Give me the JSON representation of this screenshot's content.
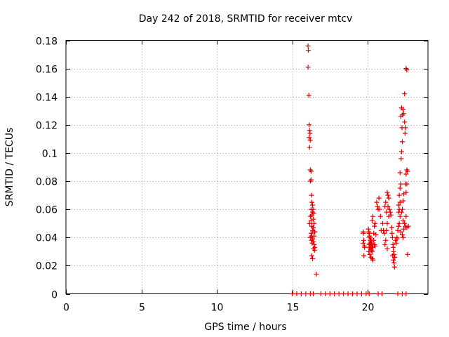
{
  "chart_data": {
    "type": "scatter",
    "title": "Day 242 of 2018, SRMTID for receiver mtcv",
    "xlabel": "GPS time / hours",
    "ylabel": "SRMTID / TECUs",
    "xlim": [
      0,
      24
    ],
    "ylim": [
      0,
      0.18
    ],
    "grid": true,
    "marker": "+",
    "marker_color": "#e00000",
    "x_ticks": [
      {
        "value": 0,
        "label": "0"
      },
      {
        "value": 5,
        "label": "5"
      },
      {
        "value": 10,
        "label": "10"
      },
      {
        "value": 15,
        "label": "15"
      },
      {
        "value": 20,
        "label": "20"
      }
    ],
    "y_ticks": [
      {
        "value": 0,
        "label": "0"
      },
      {
        "value": 0.02,
        "label": "0.02"
      },
      {
        "value": 0.04,
        "label": "0.04"
      },
      {
        "value": 0.06,
        "label": "0.06"
      },
      {
        "value": 0.08,
        "label": "0.08"
      },
      {
        "value": 0.1,
        "label": "0.1"
      },
      {
        "value": 0.12,
        "label": "0.12"
      },
      {
        "value": 0.14,
        "label": "0.14"
      },
      {
        "value": 0.16,
        "label": "0.16"
      },
      {
        "value": 0.18,
        "label": "0.18"
      }
    ],
    "series": [
      {
        "name": "SRMTID",
        "points": [
          [
            16.05,
            0.176
          ],
          [
            16.07,
            0.173
          ],
          [
            16.05,
            0.161
          ],
          [
            16.1,
            0.141
          ],
          [
            16.12,
            0.12
          ],
          [
            16.15,
            0.116
          ],
          [
            16.18,
            0.114
          ],
          [
            16.12,
            0.111
          ],
          [
            16.2,
            0.109
          ],
          [
            16.15,
            0.104
          ],
          [
            16.2,
            0.088
          ],
          [
            16.25,
            0.087
          ],
          [
            16.25,
            0.081
          ],
          [
            16.2,
            0.08
          ],
          [
            16.28,
            0.07
          ],
          [
            16.3,
            0.065
          ],
          [
            16.35,
            0.063
          ],
          [
            16.25,
            0.06
          ],
          [
            16.35,
            0.058
          ],
          [
            16.3,
            0.056
          ],
          [
            16.2,
            0.055
          ],
          [
            16.4,
            0.053
          ],
          [
            16.25,
            0.052
          ],
          [
            16.15,
            0.05
          ],
          [
            16.45,
            0.05
          ],
          [
            16.3,
            0.048
          ],
          [
            16.4,
            0.047
          ],
          [
            16.35,
            0.045
          ],
          [
            16.5,
            0.044
          ],
          [
            16.25,
            0.043
          ],
          [
            16.3,
            0.041
          ],
          [
            16.45,
            0.041
          ],
          [
            16.2,
            0.04
          ],
          [
            16.35,
            0.039
          ],
          [
            16.28,
            0.038
          ],
          [
            16.4,
            0.037
          ],
          [
            16.32,
            0.036
          ],
          [
            16.45,
            0.035
          ],
          [
            16.5,
            0.033
          ],
          [
            16.4,
            0.032
          ],
          [
            16.48,
            0.031
          ],
          [
            16.3,
            0.027
          ],
          [
            16.35,
            0.025
          ],
          [
            16.6,
            0.014
          ],
          [
            16.38,
            0.06
          ],
          [
            16.42,
            0.057
          ],
          [
            16.46,
            0.044
          ],
          [
            19.7,
            0.044
          ],
          [
            19.72,
            0.043
          ],
          [
            19.75,
            0.038
          ],
          [
            19.7,
            0.036
          ],
          [
            19.78,
            0.034
          ],
          [
            19.8,
            0.033
          ],
          [
            19.75,
            0.027
          ],
          [
            20.05,
            0.046
          ],
          [
            20.08,
            0.044
          ],
          [
            20.1,
            0.043
          ],
          [
            20.12,
            0.041
          ],
          [
            20.15,
            0.04
          ],
          [
            20.18,
            0.039
          ],
          [
            20.2,
            0.038
          ],
          [
            20.22,
            0.037
          ],
          [
            20.15,
            0.036
          ],
          [
            20.25,
            0.036
          ],
          [
            20.1,
            0.035
          ],
          [
            20.28,
            0.035
          ],
          [
            20.2,
            0.034
          ],
          [
            20.3,
            0.033
          ],
          [
            20.12,
            0.033
          ],
          [
            20.35,
            0.033
          ],
          [
            20.18,
            0.032
          ],
          [
            20.25,
            0.031
          ],
          [
            20.08,
            0.03
          ],
          [
            20.3,
            0.03
          ],
          [
            20.15,
            0.028
          ],
          [
            20.22,
            0.026
          ],
          [
            20.3,
            0.025
          ],
          [
            20.35,
            0.024
          ],
          [
            20.4,
            0.043
          ],
          [
            20.4,
            0.038
          ],
          [
            20.45,
            0.035
          ],
          [
            20.5,
            0.034
          ],
          [
            20.3,
            0.052
          ],
          [
            20.35,
            0.055
          ],
          [
            20.45,
            0.048
          ],
          [
            20.5,
            0.05
          ],
          [
            20.55,
            0.042
          ],
          [
            20.6,
            0.065
          ],
          [
            20.65,
            0.062
          ],
          [
            20.7,
            0.06
          ],
          [
            20.75,
            0.068
          ],
          [
            20.8,
            0.06
          ],
          [
            20.85,
            0.055
          ],
          [
            20.9,
            0.045
          ],
          [
            21,
            0.05
          ],
          [
            21.05,
            0.045
          ],
          [
            21.1,
            0.043
          ],
          [
            21.15,
            0.062
          ],
          [
            21.2,
            0.065
          ],
          [
            21.25,
            0.058
          ],
          [
            21.3,
            0.072
          ],
          [
            21.35,
            0.07
          ],
          [
            21.4,
            0.068
          ],
          [
            21.35,
            0.062
          ],
          [
            21.45,
            0.06
          ],
          [
            21.5,
            0.058
          ],
          [
            21.55,
            0.056
          ],
          [
            21.4,
            0.055
          ],
          [
            21.3,
            0.05
          ],
          [
            21.25,
            0.045
          ],
          [
            21.2,
            0.038
          ],
          [
            21.15,
            0.035
          ],
          [
            21.3,
            0.032
          ],
          [
            21.6,
            0.047
          ],
          [
            21.62,
            0.043
          ],
          [
            21.65,
            0.04
          ],
          [
            21.68,
            0.035
          ],
          [
            21.7,
            0.033
          ],
          [
            21.72,
            0.03
          ],
          [
            21.75,
            0.028
          ],
          [
            21.65,
            0.027
          ],
          [
            21.8,
            0.026
          ],
          [
            21.7,
            0.024
          ],
          [
            21.75,
            0.022
          ],
          [
            21.78,
            0.019
          ],
          [
            21.85,
            0.038
          ],
          [
            21.9,
            0.036
          ],
          [
            21.95,
            0.04
          ],
          [
            22,
            0.045
          ],
          [
            22.05,
            0.058
          ],
          [
            22.1,
            0.06
          ],
          [
            22.05,
            0.063
          ],
          [
            22.15,
            0.065
          ],
          [
            22.1,
            0.07
          ],
          [
            22.15,
            0.075
          ],
          [
            22.2,
            0.078
          ],
          [
            22.15,
            0.086
          ],
          [
            22.22,
            0.096
          ],
          [
            22.25,
            0.101
          ],
          [
            22.3,
            0.108
          ],
          [
            22.28,
            0.118
          ],
          [
            22.2,
            0.126
          ],
          [
            22.3,
            0.127
          ],
          [
            22.25,
            0.132
          ],
          [
            22.35,
            0.131
          ],
          [
            22.4,
            0.128
          ],
          [
            22.45,
            0.122
          ],
          [
            22.5,
            0.118
          ],
          [
            22.48,
            0.114
          ],
          [
            22.55,
            0.16
          ],
          [
            22.6,
            0.159
          ],
          [
            22.45,
            0.142
          ],
          [
            22.6,
            0.088
          ],
          [
            22.65,
            0.087
          ],
          [
            22.55,
            0.085
          ],
          [
            22.5,
            0.078
          ],
          [
            22.6,
            0.078
          ],
          [
            22.55,
            0.072
          ],
          [
            22.4,
            0.071
          ],
          [
            22.35,
            0.066
          ],
          [
            22.3,
            0.06
          ],
          [
            22.25,
            0.058
          ],
          [
            22.35,
            0.052
          ],
          [
            22.45,
            0.05
          ],
          [
            22.5,
            0.048
          ],
          [
            22.6,
            0.047
          ],
          [
            22.7,
            0.048
          ],
          [
            22.55,
            0.055
          ],
          [
            22.4,
            0.046
          ],
          [
            22.3,
            0.042
          ],
          [
            22.35,
            0.04
          ],
          [
            22.65,
            0.028
          ],
          [
            22.1,
            0.05
          ],
          [
            22.05,
            0.048
          ],
          [
            21.95,
            0.039
          ],
          [
            22.2,
            0.044
          ],
          [
            22.15,
            0.055
          ],
          [
            15,
            0
          ],
          [
            15.3,
            0
          ],
          [
            15.6,
            0
          ],
          [
            15.9,
            0
          ],
          [
            16.2,
            0
          ],
          [
            16.4,
            0
          ],
          [
            16.9,
            0
          ],
          [
            17.2,
            0
          ],
          [
            17.5,
            0
          ],
          [
            17.8,
            0
          ],
          [
            18.1,
            0
          ],
          [
            18.4,
            0
          ],
          [
            18.7,
            0
          ],
          [
            19,
            0
          ],
          [
            19.3,
            0
          ],
          [
            19.6,
            0
          ],
          [
            19.9,
            0
          ],
          [
            20.1,
            0
          ],
          [
            20.7,
            0
          ],
          [
            20.95,
            0
          ],
          [
            22,
            0
          ],
          [
            22.3,
            0
          ],
          [
            22.55,
            0
          ]
        ]
      }
    ]
  }
}
